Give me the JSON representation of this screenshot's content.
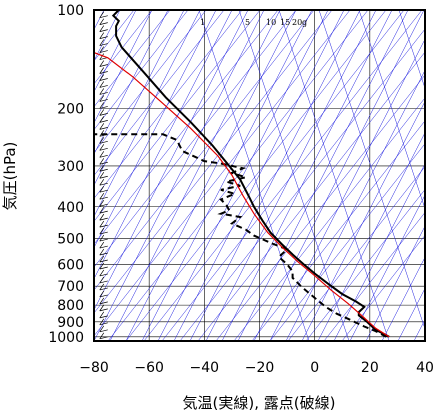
{
  "chart_data": {
    "type": "line",
    "xlabel": "気温(実線), 露点(破線)",
    "ylabel": "気圧(hPa)",
    "xlim": [
      -80,
      40
    ],
    "ylim": [
      1030,
      100
    ],
    "yscale": "log",
    "x_ticks": [
      -80,
      -60,
      -40,
      -20,
      0,
      20,
      40
    ],
    "y_ticks": [
      100,
      200,
      300,
      400,
      500,
      600,
      700,
      800,
      900,
      1000
    ],
    "mixing_ratio_labels": [
      "1",
      "5",
      "10",
      "15",
      "20",
      "g"
    ],
    "colors": {
      "temperature": "#000000",
      "dewpoint": "#000000",
      "parcel": "#e00000",
      "guide": "#2020e0",
      "grid": "#000000"
    },
    "series": [
      {
        "style": "solid",
        "points": [
          [
            27,
            1000
          ],
          [
            25,
            980
          ],
          [
            22,
            950
          ],
          [
            19,
            900
          ],
          [
            16,
            860
          ],
          [
            16,
            840
          ],
          [
            18,
            810
          ],
          [
            15,
            780
          ],
          [
            10,
            740
          ],
          [
            5,
            690
          ],
          [
            0,
            640
          ],
          [
            -4,
            600
          ],
          [
            -8,
            560
          ],
          [
            -12,
            520
          ],
          [
            -16,
            480
          ],
          [
            -19,
            440
          ],
          [
            -22,
            400
          ],
          [
            -24,
            370
          ],
          [
            -27,
            330
          ],
          [
            -31,
            300
          ],
          [
            -37,
            260
          ],
          [
            -45,
            220
          ],
          [
            -54,
            185
          ],
          [
            -62,
            155
          ],
          [
            -70,
            130
          ],
          [
            -72,
            120
          ],
          [
            -72,
            112
          ],
          [
            -71,
            108
          ],
          [
            -73,
            104
          ],
          [
            -71,
            100
          ]
        ]
      },
      {
        "style": "dashed",
        "points": [
          [
            26,
            1000
          ],
          [
            22,
            960
          ],
          [
            18,
            930
          ],
          [
            12,
            880
          ],
          [
            8,
            850
          ],
          [
            4,
            810
          ],
          [
            0,
            760
          ],
          [
            -5,
            700
          ],
          [
            -8,
            660
          ],
          [
            -8,
            630
          ],
          [
            -10,
            600
          ],
          [
            -13,
            570
          ],
          [
            -10,
            540
          ],
          [
            -15,
            520
          ],
          [
            -22,
            490
          ],
          [
            -25,
            470
          ],
          [
            -30,
            450
          ],
          [
            -27,
            430
          ],
          [
            -34,
            420
          ],
          [
            -31,
            410
          ],
          [
            -32,
            395
          ],
          [
            -34,
            380
          ],
          [
            -29,
            365
          ],
          [
            -34,
            355
          ],
          [
            -27,
            345
          ],
          [
            -32,
            335
          ],
          [
            -25,
            325
          ],
          [
            -30,
            315
          ],
          [
            -26,
            305
          ],
          [
            -34,
            295
          ],
          [
            -40,
            290
          ],
          [
            -48,
            270
          ],
          [
            -50,
            250
          ],
          [
            -55,
            240
          ],
          [
            -80,
            240
          ]
        ]
      },
      {
        "style": "solid",
        "points": [
          [
            27,
            1000
          ],
          [
            22,
            940
          ],
          [
            17,
            860
          ],
          [
            12,
            790
          ],
          [
            6,
            720
          ],
          [
            0,
            650
          ],
          [
            -6,
            590
          ],
          [
            -12,
            530
          ],
          [
            -17,
            480
          ],
          [
            -22,
            420
          ],
          [
            -26,
            370
          ],
          [
            -30,
            320
          ],
          [
            -35,
            280
          ],
          [
            -45,
            230
          ],
          [
            -56,
            190
          ],
          [
            -66,
            160
          ],
          [
            -75,
            140
          ],
          [
            -80,
            135
          ]
        ]
      }
    ],
    "wind_barbs_column_x": -75
  }
}
